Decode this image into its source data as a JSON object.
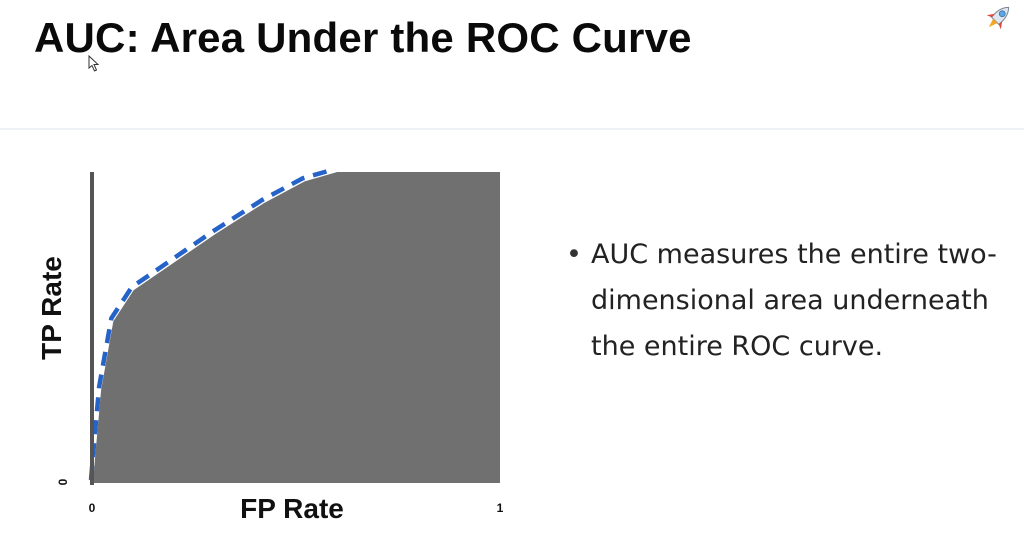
{
  "slide": {
    "title": "AUC: Area Under the ROC Curve"
  },
  "icons": {
    "corner": "rocket-icon",
    "pointer": "mouse-cursor-icon"
  },
  "chart_data": {
    "type": "area",
    "xlabel": "FP Rate",
    "ylabel": "TP Rate",
    "xlim": [
      0,
      1
    ],
    "ylim": [
      0,
      1
    ],
    "x_tick_labels": [
      "0",
      "1"
    ],
    "y_tick_labels": [
      "0"
    ],
    "grid": false,
    "series": [
      {
        "style": "filled-area",
        "color": "#707070",
        "x": [
          0,
          0.005,
          0.02,
          0.05,
          0.1,
          0.2,
          0.3,
          0.42,
          0.52,
          0.6,
          1.0
        ],
        "y": [
          0,
          0.08,
          0.3,
          0.52,
          0.62,
          0.71,
          0.8,
          0.9,
          0.97,
          1.0,
          1.0
        ]
      },
      {
        "style": "dashed-line",
        "color": "#2563c9",
        "x": [
          0,
          0.005,
          0.02,
          0.05,
          0.1,
          0.2,
          0.3,
          0.42,
          0.52,
          0.6
        ],
        "y": [
          0,
          0.08,
          0.3,
          0.52,
          0.62,
          0.71,
          0.8,
          0.9,
          0.97,
          1.0
        ]
      }
    ]
  },
  "bullets": [
    "AUC measures the entire two-dimensional area underneath the entire ROC curve."
  ]
}
